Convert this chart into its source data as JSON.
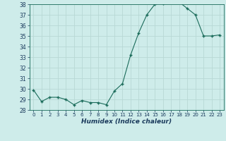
{
  "x": [
    0,
    1,
    2,
    3,
    4,
    5,
    6,
    7,
    8,
    9,
    10,
    11,
    12,
    13,
    14,
    15,
    16,
    17,
    18,
    19,
    20,
    21,
    22,
    23
  ],
  "y": [
    29.9,
    28.8,
    29.2,
    29.2,
    29.0,
    28.5,
    28.9,
    28.7,
    28.7,
    28.5,
    29.8,
    30.5,
    33.2,
    35.3,
    37.0,
    38.0,
    38.1,
    38.2,
    38.2,
    37.6,
    37.0,
    35.0,
    35.0,
    35.1
  ],
  "ylim_min": 28,
  "ylim_max": 38,
  "yticks": [
    28,
    29,
    30,
    31,
    32,
    33,
    34,
    35,
    36,
    37,
    38
  ],
  "xlabel": "Humidex (Indice chaleur)",
  "line_color": "#1a6b5a",
  "marker": "+",
  "bg_color": "#ceecea",
  "grid_color": "#b8d8d5",
  "tick_label_color": "#1a3a5c",
  "xlabel_color": "#1a3a5c",
  "figsize": [
    3.2,
    2.0
  ],
  "dpi": 100
}
